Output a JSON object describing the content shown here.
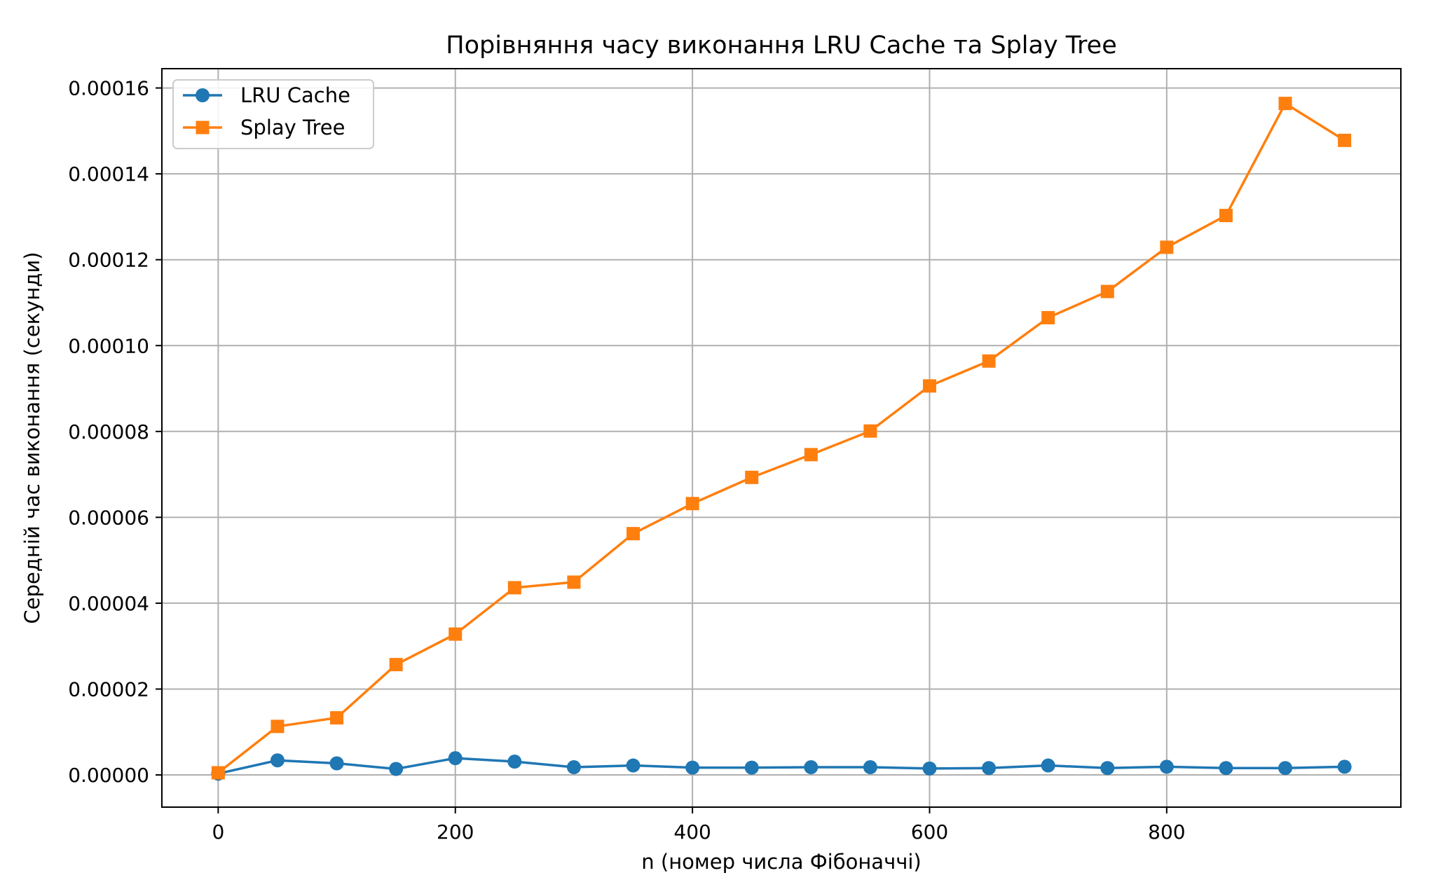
{
  "chart_data": {
    "type": "line",
    "title": "Порівняння часу виконання LRU Cache та Splay Tree",
    "xlabel": "n (номер числа Фібоначчі)",
    "ylabel": "Середній час виконання (секунди)",
    "x": [
      0,
      50,
      100,
      150,
      200,
      250,
      300,
      350,
      400,
      450,
      500,
      550,
      600,
      650,
      700,
      750,
      800,
      850,
      900,
      950
    ],
    "xlim": [
      -47.5,
      997.5
    ],
    "ylim": [
      -7.5e-06,
      0.0001645
    ],
    "xticks": [
      0,
      200,
      400,
      600,
      800
    ],
    "xtick_labels": [
      "0",
      "200",
      "400",
      "600",
      "800"
    ],
    "yticks": [
      0,
      2e-05,
      4e-05,
      6e-05,
      8e-05,
      0.0001,
      0.00012,
      0.00014,
      0.00016
    ],
    "ytick_labels": [
      "0.00000",
      "0.00002",
      "0.00004",
      "0.00006",
      "0.00008",
      "0.00010",
      "0.00012",
      "0.00014",
      "0.00016"
    ],
    "grid": true,
    "legend_position": "top-left",
    "series": [
      {
        "name": "LRU Cache",
        "color": "#1f77b4",
        "marker": "circle",
        "values": [
          3e-07,
          3.4e-06,
          2.7e-06,
          1.4e-06,
          3.9e-06,
          3.1e-06,
          1.8e-06,
          2.2e-06,
          1.7e-06,
          1.7e-06,
          1.8e-06,
          1.8e-06,
          1.5e-06,
          1.6e-06,
          2.2e-06,
          1.6e-06,
          1.9e-06,
          1.6e-06,
          1.6e-06,
          1.9e-06
        ]
      },
      {
        "name": "Splay Tree",
        "color": "#ff7f0e",
        "marker": "square",
        "values": [
          5e-07,
          1.13e-05,
          1.33e-05,
          2.57e-05,
          3.28e-05,
          4.36e-05,
          4.49e-05,
          5.62e-05,
          6.32e-05,
          6.93e-05,
          7.46e-05,
          8.01e-05,
          9.06e-05,
          9.64e-05,
          0.0001065,
          0.0001126,
          0.0001229,
          0.0001303,
          0.0001564,
          0.0001478
        ]
      }
    ]
  }
}
